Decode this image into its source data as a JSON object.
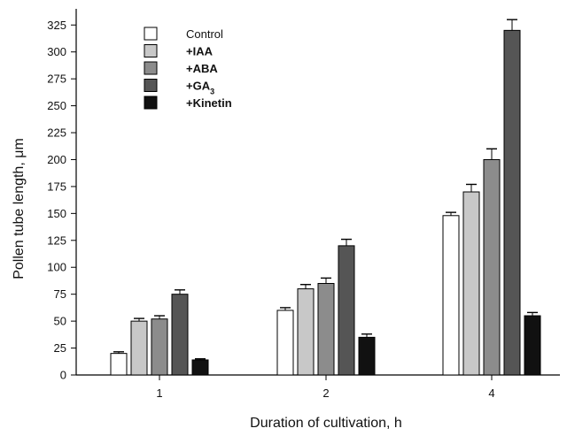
{
  "chart_data": {
    "type": "bar",
    "xlabel": "Duration of cultivation, h",
    "ylabel": "Pollen tube length, μm",
    "categories": [
      "1",
      "2",
      "4"
    ],
    "ylim": [
      0,
      340
    ],
    "yticks": [
      0,
      25,
      50,
      75,
      100,
      125,
      150,
      175,
      200,
      225,
      250,
      275,
      300,
      325
    ],
    "grid": false,
    "legend_position": "top-left",
    "series": [
      {
        "name": "Control",
        "color": "#ffffff",
        "bold": false,
        "values": [
          20,
          60,
          148
        ],
        "errors": [
          1.5,
          2.5,
          3
        ]
      },
      {
        "name": "+IAA",
        "color": "#c8c8c8",
        "bold": true,
        "values": [
          50,
          80,
          170
        ],
        "errors": [
          2.5,
          4,
          7
        ]
      },
      {
        "name": "+ABA",
        "color": "#8c8c8c",
        "bold": true,
        "values": [
          52,
          85,
          200
        ],
        "errors": [
          3,
          5,
          10
        ]
      },
      {
        "name": "+GA",
        "name_subscript": "3",
        "color": "#555555",
        "bold": true,
        "values": [
          75,
          120,
          320
        ],
        "errors": [
          4,
          6,
          10
        ]
      },
      {
        "name": "+Kinetin",
        "color": "#111111",
        "bold": true,
        "values": [
          14,
          35,
          55
        ],
        "errors": [
          1,
          3,
          3
        ]
      }
    ]
  }
}
